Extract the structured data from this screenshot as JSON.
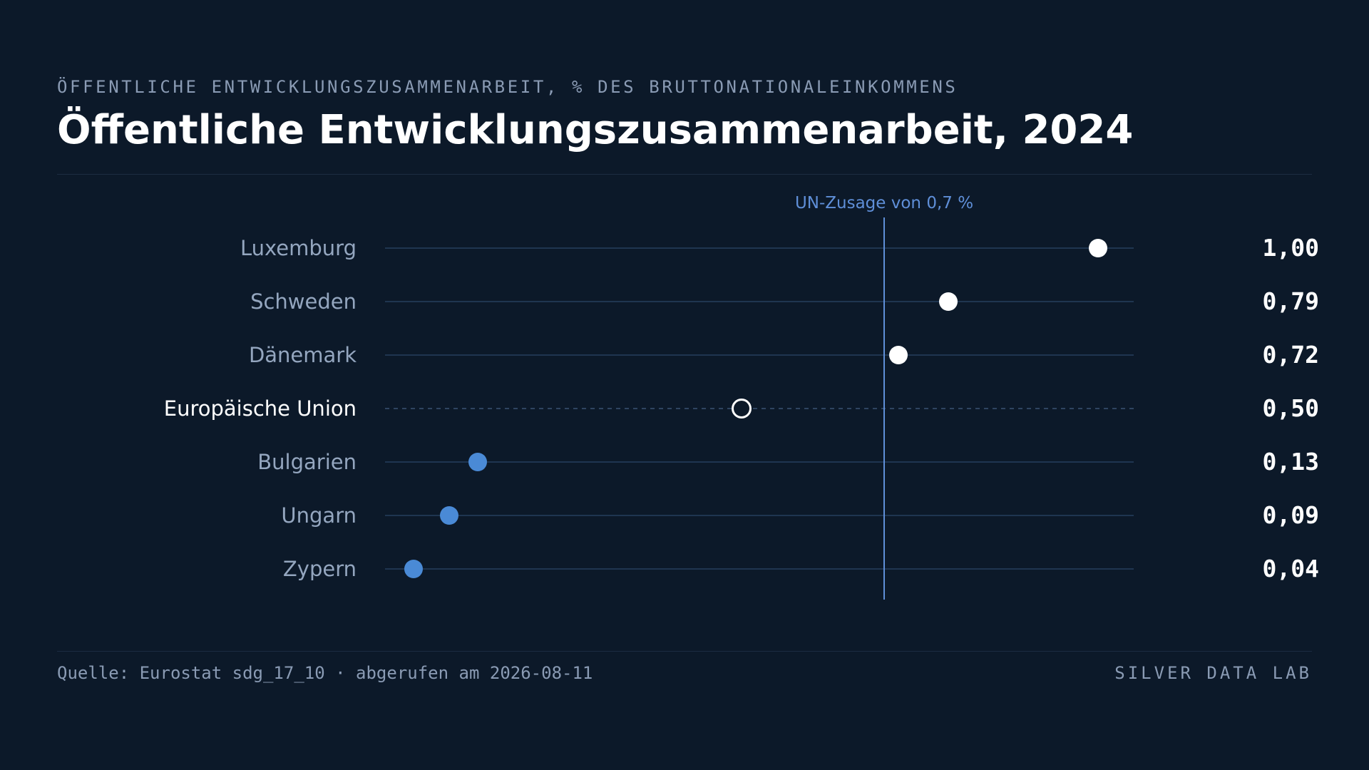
{
  "header": {
    "eyebrow": "ÖFFENTLICHE ENTWICKLUNGSZUSAMMENARBEIT, % DES BRUTTONATIONALEINKOMMENS",
    "title": "Öffentliche Entwicklungszusammenarbeit, 2024"
  },
  "footer": {
    "source": "Quelle: Eurostat sdg_17_10 · abgerufen am 2026-08-11",
    "brand": "SILVER DATA LAB"
  },
  "colors": {
    "background": "#0c1929",
    "above_target": "#ffffff",
    "below_target": "#4a8ad6",
    "reference_line": "#5f8fd8",
    "track": "#1f3550",
    "label_muted": "#94a6bf",
    "label_highlight": "#ffffff"
  },
  "chart_data": {
    "type": "dot",
    "title": "Öffentliche Entwicklungszusammenarbeit, 2024",
    "unit": "% des Bruttonationaleinkommens",
    "xlim": [
      0,
      1.05
    ],
    "reference_line": {
      "value": 0.7,
      "label": "UN-Zusage von 0,7 %"
    },
    "points": [
      {
        "label": "Luxemburg",
        "value": 1.0,
        "display": "1,00",
        "style": "above"
      },
      {
        "label": "Schweden",
        "value": 0.79,
        "display": "0,79",
        "style": "above"
      },
      {
        "label": "Dänemark",
        "value": 0.72,
        "display": "0,72",
        "style": "above"
      },
      {
        "label": "Europäische Union",
        "value": 0.5,
        "display": "0,50",
        "style": "aggregate"
      },
      {
        "label": "Bulgarien",
        "value": 0.13,
        "display": "0,13",
        "style": "below"
      },
      {
        "label": "Ungarn",
        "value": 0.09,
        "display": "0,09",
        "style": "below"
      },
      {
        "label": "Zypern",
        "value": 0.04,
        "display": "0,04",
        "style": "below"
      }
    ]
  }
}
